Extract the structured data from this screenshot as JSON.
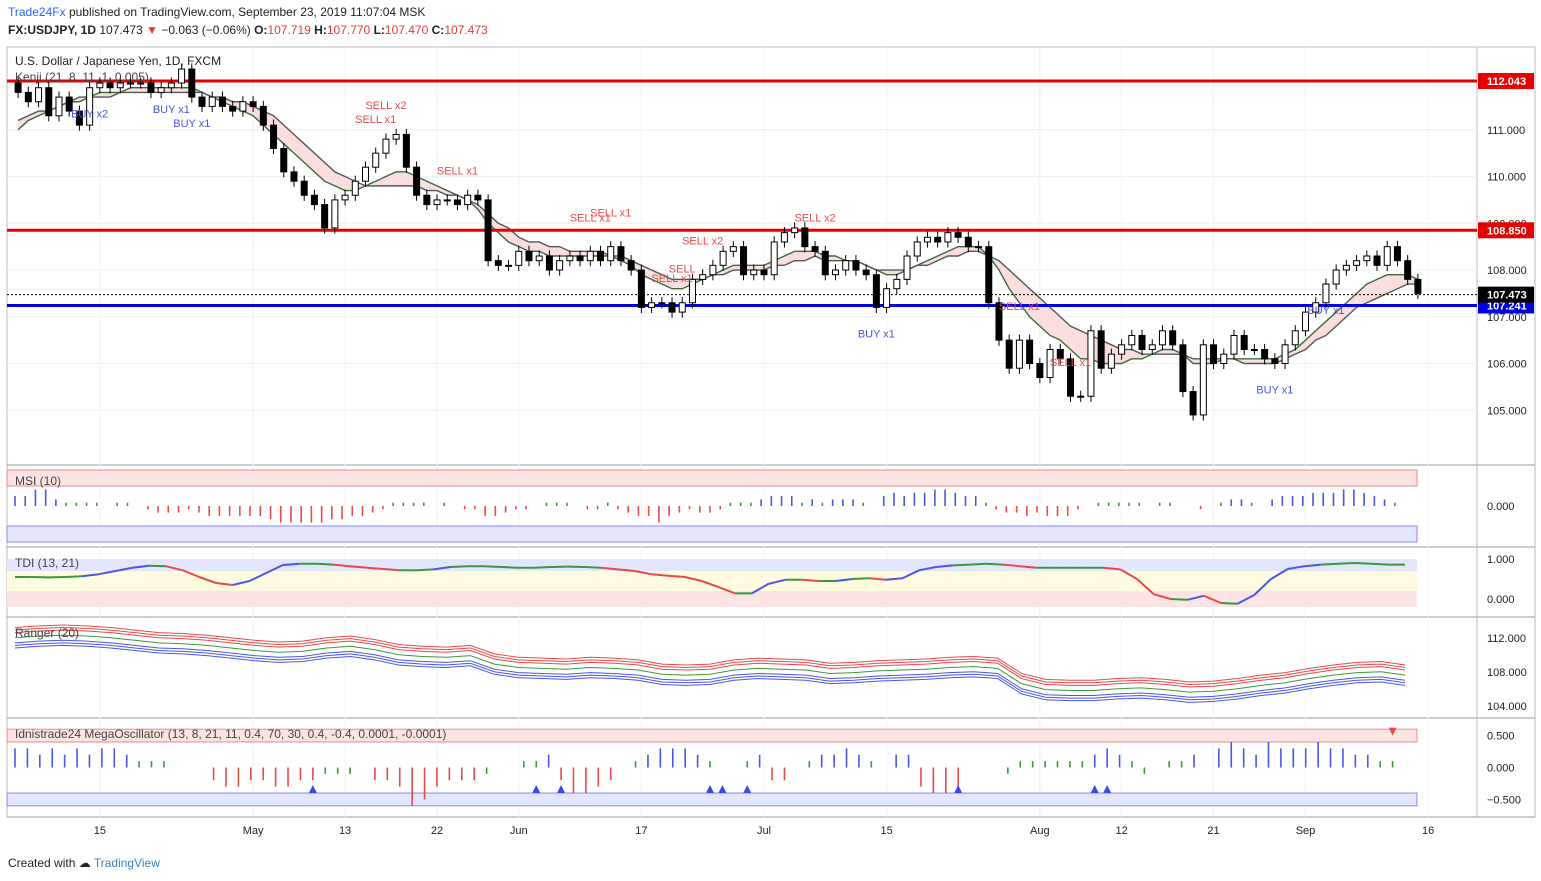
{
  "header": {
    "publisher": "Trade24Fx",
    "published_text": "published on TradingView.com, September 23, 2019 11:07:04 MSK",
    "symbol": "FX:USDJPY, 1D",
    "last": "107.473",
    "change": "−0.063 (−0.06%)",
    "o_label": "O:",
    "o": "107.719",
    "h_label": "H:",
    "h": "107.770",
    "l_label": "L:",
    "l": "107.470",
    "c_label": "C:",
    "c": "107.473"
  },
  "footer": {
    "created_with": "Created with",
    "brand": "TradingView"
  },
  "colors": {
    "up": "#ffffff",
    "down": "#000000",
    "resistance": "#e60000",
    "support": "#0000dd",
    "buy": "#4a56e8",
    "sell": "#e84a4a",
    "kenji_bull": "#d6f5d6",
    "kenji_bear": "#f9d6d6"
  },
  "chart_data": [
    {
      "type": "candlestick",
      "title": "U.S. Dollar / Japanese Yen, 1D, FXCM",
      "indicator": "Kenji (21, 8, 11, 1, 0.005)",
      "ylim": [
        104.0,
        112.6
      ],
      "y_ticks": [
        "105.000",
        "106.000",
        "107.000",
        "108.000",
        "109.000",
        "110.000",
        "111.000"
      ],
      "x_ticks": [
        "15",
        "May",
        "13",
        "22",
        "Jun",
        "17",
        "Jul",
        "15",
        "Aug",
        "12",
        "21",
        "Sep",
        "16"
      ],
      "levels": [
        {
          "name": "resistance",
          "value": 112.043,
          "label": "112.043"
        },
        {
          "name": "resistance",
          "value": 108.85,
          "label": "108.850"
        },
        {
          "name": "support",
          "value": 107.241,
          "label": "107.241"
        },
        {
          "name": "last",
          "value": 107.473,
          "label": "107.473"
        }
      ],
      "close": [
        111.8,
        111.6,
        111.9,
        111.3,
        111.7,
        111.4,
        111.1,
        111.9,
        112.0,
        111.9,
        112.0,
        112.0,
        112.0,
        111.8,
        111.9,
        112.0,
        112.3,
        111.7,
        111.5,
        111.7,
        111.5,
        111.4,
        111.6,
        111.5,
        111.1,
        110.6,
        110.1,
        109.9,
        109.6,
        109.4,
        108.9,
        109.5,
        109.6,
        109.9,
        110.2,
        110.5,
        110.8,
        110.9,
        110.2,
        109.6,
        109.4,
        109.5,
        109.5,
        109.4,
        109.6,
        109.5,
        108.2,
        108.1,
        108.1,
        108.4,
        108.2,
        108.3,
        108.0,
        108.2,
        108.3,
        108.2,
        108.4,
        108.2,
        108.5,
        108.2,
        108.0,
        107.2,
        107.3,
        107.3,
        107.1,
        107.3,
        107.8,
        107.9,
        108.1,
        108.4,
        108.5,
        107.9,
        108.0,
        107.9,
        108.6,
        108.8,
        108.9,
        108.5,
        108.4,
        107.9,
        108.0,
        108.2,
        108.0,
        107.9,
        107.2,
        107.6,
        107.8,
        108.3,
        108.6,
        108.7,
        108.6,
        108.8,
        108.7,
        108.5,
        108.5,
        107.3,
        106.5,
        105.9,
        106.5,
        106.0,
        105.7,
        106.3,
        106.1,
        105.3,
        105.3,
        106.7,
        105.9,
        106.2,
        106.4,
        106.6,
        106.3,
        106.4,
        106.7,
        106.4,
        105.4,
        104.9,
        106.4,
        106.0,
        106.2,
        106.6,
        106.3,
        106.3,
        106.1,
        106.0,
        106.4,
        106.7,
        107.1,
        107.3,
        107.7,
        108.0,
        108.1,
        108.2,
        108.3,
        108.1,
        108.5,
        108.2,
        107.8,
        107.5
      ],
      "series": [
        {
          "name": "Kenji fast",
          "values": [
            111.0,
            111.2,
            111.3,
            111.4,
            111.5,
            111.6,
            111.7,
            111.7,
            111.8,
            111.8,
            111.8,
            111.9,
            111.9,
            111.9,
            111.9,
            111.9,
            111.9,
            111.9,
            111.8,
            111.7,
            111.6,
            111.5,
            111.4,
            111.3,
            111.1,
            110.9,
            110.7,
            110.5,
            110.3,
            110.1,
            109.9,
            109.8,
            109.7,
            109.7,
            109.8,
            109.9,
            110.0,
            110.1,
            110.1,
            110.0,
            109.9,
            109.8,
            109.7,
            109.6,
            109.5,
            109.3,
            109.0,
            108.8,
            108.6,
            108.5,
            108.4,
            108.4,
            108.3,
            108.3,
            108.3,
            108.3,
            108.3,
            108.3,
            108.3,
            108.2,
            108.1,
            107.9,
            107.8,
            107.7,
            107.6,
            107.6,
            107.7,
            107.8,
            107.9,
            108.0,
            108.1,
            108.1,
            108.1,
            108.1,
            108.2,
            108.3,
            108.4,
            108.4,
            108.4,
            108.3,
            108.3,
            108.2,
            108.2,
            108.1,
            108.0,
            107.9,
            107.9,
            108.0,
            108.1,
            108.2,
            108.3,
            108.4,
            108.5,
            108.5,
            108.5,
            108.3,
            108.0,
            107.6,
            107.3,
            107.0,
            106.8,
            106.6,
            106.5,
            106.3,
            106.1,
            106.1,
            106.0,
            106.0,
            106.0,
            106.1,
            106.1,
            106.2,
            106.3,
            106.3,
            106.2,
            106.0,
            106.0,
            106.0,
            106.1,
            106.1,
            106.1,
            106.1,
            106.1,
            106.1,
            106.2,
            106.3,
            106.5,
            106.7,
            106.9,
            107.1,
            107.3,
            107.5,
            107.7,
            107.8,
            107.9,
            107.9,
            107.9,
            107.8
          ]
        },
        {
          "name": "Kenji slow",
          "values": [
            111.2,
            111.3,
            111.4,
            111.4,
            111.5,
            111.6,
            111.6,
            111.7,
            111.7,
            111.7,
            111.8,
            111.8,
            111.8,
            111.8,
            111.8,
            111.8,
            111.8,
            111.8,
            111.8,
            111.7,
            111.7,
            111.6,
            111.6,
            111.5,
            111.4,
            111.3,
            111.1,
            110.9,
            110.7,
            110.5,
            110.3,
            110.1,
            110.0,
            109.9,
            109.8,
            109.8,
            109.8,
            109.8,
            109.8,
            109.8,
            109.7,
            109.7,
            109.6,
            109.6,
            109.5,
            109.4,
            109.2,
            109.0,
            108.9,
            108.7,
            108.6,
            108.6,
            108.5,
            108.5,
            108.4,
            108.4,
            108.4,
            108.4,
            108.3,
            108.3,
            108.2,
            108.1,
            108.0,
            107.9,
            107.8,
            107.8,
            107.8,
            107.8,
            107.9,
            107.9,
            108.0,
            108.0,
            108.0,
            108.0,
            108.1,
            108.1,
            108.2,
            108.2,
            108.3,
            108.2,
            108.2,
            108.2,
            108.2,
            108.1,
            108.0,
            108.0,
            108.0,
            108.0,
            108.1,
            108.1,
            108.2,
            108.3,
            108.3,
            108.4,
            108.4,
            108.3,
            108.2,
            108.0,
            107.8,
            107.6,
            107.4,
            107.2,
            107.0,
            106.8,
            106.7,
            106.6,
            106.5,
            106.4,
            106.3,
            106.3,
            106.2,
            106.2,
            106.2,
            106.2,
            106.2,
            106.1,
            106.1,
            106.1,
            106.1,
            106.1,
            106.0,
            106.0,
            106.0,
            106.0,
            106.1,
            106.2,
            106.3,
            106.5,
            106.6,
            106.8,
            107.0,
            107.2,
            107.3,
            107.4,
            107.5,
            107.6,
            107.7,
            107.7
          ]
        }
      ],
      "signals": [
        {
          "label": "BUY x2",
          "bar": 7
        },
        {
          "label": "BUY x1",
          "bar": 15
        },
        {
          "label": "BUY x1",
          "bar": 17
        },
        {
          "label": "SELL x2",
          "bar": 36
        },
        {
          "label": "SELL x1",
          "bar": 35
        },
        {
          "label": "SELL x1",
          "bar": 43
        },
        {
          "label": "SELL x1",
          "bar": 56
        },
        {
          "label": "SELL x1",
          "bar": 58
        },
        {
          "label": "SELL x1",
          "bar": 64
        },
        {
          "label": "SELL",
          "bar": 65
        },
        {
          "label": "SELL x2",
          "bar": 67
        },
        {
          "label": "SELL x2",
          "bar": 78
        },
        {
          "label": "BUY x1",
          "bar": 84
        },
        {
          "label": "SELL x1",
          "bar": 98
        },
        {
          "label": "SELL x1",
          "bar": 103
        },
        {
          "label": "BUY x1",
          "bar": 123
        },
        {
          "label": "BUY x1",
          "bar": 128
        }
      ]
    },
    {
      "type": "histogram",
      "title": "MSI (10)",
      "ylim": [
        -1,
        1
      ],
      "y_ticks": [
        "0.000"
      ],
      "values": [
        0.3,
        0.3,
        0.5,
        0.5,
        0.2,
        0.1,
        0.1,
        0.1,
        0.1,
        0.0,
        0.1,
        0.1,
        0.0,
        -0.1,
        -0.2,
        -0.2,
        -0.2,
        -0.1,
        -0.2,
        -0.3,
        -0.3,
        -0.3,
        -0.3,
        -0.3,
        -0.3,
        -0.4,
        -0.5,
        -0.5,
        -0.5,
        -0.5,
        -0.5,
        -0.4,
        -0.4,
        -0.3,
        -0.3,
        -0.2,
        -0.1,
        0.1,
        0.1,
        0.1,
        0.1,
        0.0,
        0.1,
        0.0,
        -0.1,
        -0.1,
        -0.3,
        -0.3,
        -0.2,
        -0.1,
        -0.1,
        0.0,
        0.1,
        0.1,
        0.1,
        0.0,
        -0.1,
        -0.1,
        0.1,
        -0.1,
        -0.2,
        -0.3,
        -0.3,
        -0.5,
        -0.3,
        -0.2,
        -0.1,
        -0.2,
        -0.2,
        -0.1,
        0.1,
        0.1,
        0.1,
        0.2,
        0.3,
        0.3,
        0.3,
        0.1,
        0.2,
        0.1,
        0.2,
        0.2,
        0.2,
        0.1,
        0.0,
        0.3,
        0.4,
        0.3,
        0.4,
        0.4,
        0.5,
        0.5,
        0.4,
        0.3,
        0.3,
        0.1,
        -0.1,
        -0.2,
        -0.2,
        -0.3,
        -0.2,
        -0.3,
        -0.3,
        -0.3,
        -0.1,
        0.0,
        0.1,
        0.1,
        0.1,
        0.1,
        0.1,
        0.0,
        0.1,
        0.1,
        0.0,
        0.0,
        -0.1,
        0.0,
        0.1,
        0.2,
        0.2,
        0.1,
        0.0,
        0.2,
        0.3,
        0.3,
        0.3,
        0.4,
        0.4,
        0.4,
        0.5,
        0.5,
        0.4,
        0.3,
        0.2,
        0.1
      ]
    },
    {
      "type": "line",
      "title": "TDI (13, 21)",
      "ylim": [
        -0.25,
        1.1
      ],
      "y_ticks": [
        "1.000",
        "0.000"
      ],
      "values": [
        0.55,
        0.55,
        0.54,
        0.55,
        0.57,
        0.62,
        0.7,
        0.78,
        0.83,
        0.82,
        0.72,
        0.55,
        0.4,
        0.35,
        0.45,
        0.65,
        0.85,
        0.88,
        0.88,
        0.86,
        0.82,
        0.78,
        0.75,
        0.72,
        0.72,
        0.74,
        0.8,
        0.82,
        0.82,
        0.8,
        0.78,
        0.78,
        0.8,
        0.81,
        0.8,
        0.78,
        0.74,
        0.7,
        0.62,
        0.58,
        0.55,
        0.45,
        0.3,
        0.14,
        0.14,
        0.38,
        0.48,
        0.48,
        0.45,
        0.45,
        0.5,
        0.52,
        0.48,
        0.52,
        0.72,
        0.8,
        0.84,
        0.86,
        0.88,
        0.86,
        0.82,
        0.78,
        0.78,
        0.78,
        0.78,
        0.78,
        0.74,
        0.5,
        0.12,
        0.0,
        -0.02,
        0.08,
        -0.1,
        -0.12,
        0.1,
        0.5,
        0.75,
        0.82,
        0.86,
        0.88,
        0.9,
        0.88,
        0.86,
        0.86
      ]
    },
    {
      "type": "line",
      "title": "Ranger (20)",
      "ylim": [
        103.5,
        113.5
      ],
      "y_ticks": [
        "112.000",
        "108.000",
        "104.000"
      ],
      "values": [
        112.0,
        112.2,
        112.3,
        112.2,
        112.0,
        111.7,
        111.4,
        111.3,
        111.1,
        110.8,
        110.5,
        110.3,
        110.4,
        110.8,
        111.0,
        110.6,
        110.0,
        109.8,
        109.7,
        109.9,
        108.9,
        108.5,
        108.4,
        108.3,
        108.5,
        108.4,
        108.2,
        107.7,
        107.6,
        107.7,
        108.2,
        108.4,
        108.3,
        108.2,
        107.8,
        107.9,
        108.1,
        108.2,
        108.3,
        108.5,
        108.6,
        108.4,
        106.6,
        105.9,
        105.8,
        105.8,
        106.0,
        106.1,
        105.9,
        105.6,
        105.7,
        106.0,
        106.4,
        106.7,
        107.2,
        107.6,
        107.9,
        108.0,
        107.6
      ]
    },
    {
      "type": "histogram",
      "title": "Idnistrade24 MegaOscillator (13, 8, 21, 11, 0.4, 70, 30, 0.4, -0.4, 0.0001, -0.0001)",
      "ylim": [
        -0.65,
        0.65
      ],
      "y_ticks": [
        "0.500",
        "0.000",
        "−0.500"
      ],
      "values": [
        0.3,
        0.3,
        0.2,
        0.3,
        0.2,
        0.3,
        0.2,
        0.3,
        0.3,
        0.2,
        0.1,
        0.1,
        0.1,
        0.0,
        0.0,
        0.0,
        -0.2,
        -0.3,
        -0.3,
        -0.2,
        -0.2,
        -0.3,
        -0.3,
        -0.2,
        -0.2,
        -0.1,
        -0.1,
        -0.1,
        0.0,
        -0.2,
        -0.2,
        -0.3,
        -0.6,
        -0.5,
        -0.3,
        -0.2,
        -0.2,
        -0.2,
        -0.1,
        0.0,
        0.0,
        0.1,
        0.1,
        0.2,
        -0.2,
        -0.4,
        -0.4,
        -0.3,
        -0.2,
        0.0,
        0.1,
        0.2,
        0.3,
        0.3,
        0.3,
        0.2,
        0.1,
        0.0,
        0.0,
        0.1,
        0.2,
        -0.2,
        -0.2,
        0.0,
        0.1,
        0.2,
        0.2,
        0.3,
        0.2,
        0.1,
        0.0,
        0.2,
        0.2,
        -0.3,
        -0.4,
        -0.4,
        -0.3,
        0.0,
        0.0,
        0.0,
        -0.1,
        0.1,
        0.1,
        0.1,
        0.1,
        0.1,
        0.1,
        0.2,
        0.3,
        0.2,
        0.1,
        -0.1,
        0.0,
        0.1,
        0.1,
        0.2,
        0.0,
        0.3,
        0.4,
        0.3,
        0.2,
        0.4,
        0.3,
        0.3,
        0.3,
        0.4,
        0.3,
        0.3,
        0.2,
        0.2,
        0.1,
        0.1
      ],
      "triangles": [
        {
          "bar": 24,
          "dir": "up"
        },
        {
          "bar": 42,
          "dir": "up"
        },
        {
          "bar": 44,
          "dir": "up"
        },
        {
          "bar": 56,
          "dir": "up"
        },
        {
          "bar": 57,
          "dir": "up"
        },
        {
          "bar": 59,
          "dir": "up"
        },
        {
          "bar": 76,
          "dir": "up"
        },
        {
          "bar": 87,
          "dir": "up"
        },
        {
          "bar": 88,
          "dir": "up"
        },
        {
          "bar": 111,
          "dir": "down"
        }
      ]
    }
  ]
}
